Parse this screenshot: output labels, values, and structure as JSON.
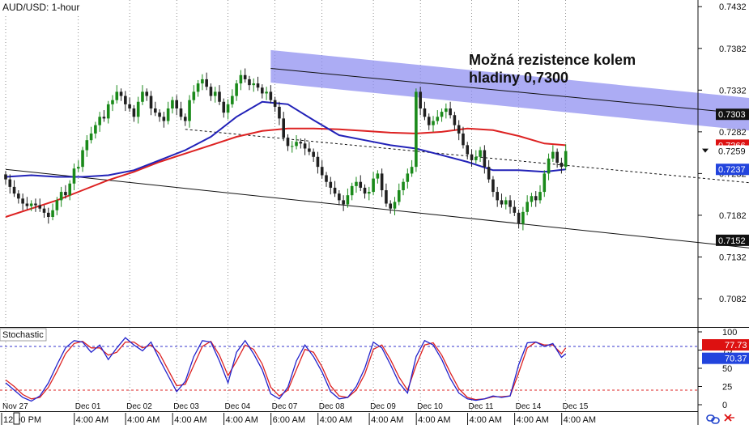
{
  "window": {
    "symbol_timeframe": "AUD/USD: 1-hour",
    "stoch_title": "Stochastic"
  },
  "annotation": {
    "line1": "Možná rezistence kolem",
    "line2": "hladiny 0,7300"
  },
  "colors": {
    "background": "#ffffff",
    "bull_candle": "#1a8a1a",
    "bear_candle": "#202020",
    "sma_fast": "#2222b8",
    "sma_slow": "#dd2222",
    "channel": "#111111",
    "resistance_zone": "#8c8cf0",
    "stoch_k": "#2222cc",
    "stoch_d": "#dd2222",
    "stoch_level_upper": "#3333cc",
    "stoch_level_lower": "#dd2222",
    "grid_vertical": "#444444",
    "label_dark": "#111111",
    "label_red": "#dd1111",
    "label_blue": "#2244dd"
  },
  "icons": {
    "link": "link-icon",
    "close": "close-icon",
    "scroll": "scroll-arrow-icon"
  },
  "chart_data": [
    {
      "type": "candlestick",
      "title": "AUD/USD: 1-hour",
      "x_tick_dates": [
        "Nov 27",
        "Dec 01",
        "Dec 02",
        "Dec 03",
        "Dec 04",
        "Dec 07",
        "Dec 08",
        "Dec 09",
        "Dec 10",
        "Dec 11",
        "Dec 14",
        "Dec 15"
      ],
      "x_tick_times": [
        "12:00 PM",
        "4:00 AM",
        "4:00 AM",
        "4:00 AM",
        "4:00 AM",
        "6:00 AM",
        "4:00 AM",
        "4:00 AM",
        "4:00 AM",
        "4:00 AM",
        "4:00 AM",
        "4:00 AM"
      ],
      "x_tick_index": [
        0,
        17,
        29,
        40,
        52,
        63,
        74,
        86,
        97,
        109,
        120,
        131
      ],
      "y_ticks": [
        0.7432,
        0.7382,
        0.7332,
        0.7282,
        0.7232,
        0.7182,
        0.7132,
        0.7082
      ],
      "ylim": [
        0.705,
        0.744
      ],
      "grid": "vertical-dotted",
      "price_labels": [
        {
          "text": "0.7303",
          "value": 0.7303,
          "style": "dark"
        },
        {
          "text": "0.7266",
          "value": 0.7266,
          "style": "red"
        },
        {
          "text": "0.7259",
          "value": 0.7259,
          "style": "white"
        },
        {
          "text": "0.7237",
          "value": 0.7237,
          "style": "blue"
        },
        {
          "text": "0.7152",
          "value": 0.7152,
          "style": "dark"
        }
      ],
      "close": [
        0.7225,
        0.7216,
        0.7208,
        0.7202,
        0.7196,
        0.7193,
        0.7196,
        0.7194,
        0.719,
        0.7185,
        0.718,
        0.7188,
        0.72,
        0.721,
        0.7206,
        0.722,
        0.7238,
        0.724,
        0.726,
        0.7272,
        0.728,
        0.729,
        0.73,
        0.7298,
        0.7315,
        0.732,
        0.733,
        0.7325,
        0.7315,
        0.731,
        0.73,
        0.7318,
        0.733,
        0.7325,
        0.731,
        0.7305,
        0.73,
        0.7295,
        0.731,
        0.732,
        0.731,
        0.73,
        0.7295,
        0.732,
        0.733,
        0.734,
        0.7345,
        0.7336,
        0.7325,
        0.733,
        0.7318,
        0.7305,
        0.7315,
        0.7325,
        0.734,
        0.735,
        0.7345,
        0.7338,
        0.734,
        0.7335,
        0.7328,
        0.733,
        0.732,
        0.7312,
        0.7298,
        0.7275,
        0.7265,
        0.7265,
        0.727,
        0.7268,
        0.7262,
        0.7258,
        0.7252,
        0.724,
        0.723,
        0.7222,
        0.7215,
        0.7208,
        0.72,
        0.7195,
        0.7206,
        0.7217,
        0.7222,
        0.7215,
        0.7208,
        0.721,
        0.7226,
        0.7232,
        0.7212,
        0.7196,
        0.719,
        0.7198,
        0.7212,
        0.7222,
        0.7232,
        0.724,
        0.733,
        0.731,
        0.73,
        0.729,
        0.7295,
        0.73,
        0.7306,
        0.731,
        0.7302,
        0.729,
        0.728,
        0.7266,
        0.7255,
        0.7248,
        0.7252,
        0.726,
        0.724,
        0.7225,
        0.721,
        0.72,
        0.7195,
        0.72,
        0.7192,
        0.7185,
        0.7172,
        0.7186,
        0.7198,
        0.7205,
        0.72,
        0.721,
        0.7232,
        0.725,
        0.7258,
        0.7245,
        0.724,
        0.7259
      ],
      "series": [
        {
          "name": "",
          "color_key": "sma_fast",
          "x_index": [
            0,
            6,
            12,
            18,
            24,
            30,
            36,
            42,
            48,
            54,
            60,
            66,
            72,
            78,
            84,
            90,
            96,
            102,
            108,
            114,
            120,
            126,
            131
          ],
          "values": [
            0.7228,
            0.723,
            0.7228,
            0.7228,
            0.723,
            0.7236,
            0.7248,
            0.726,
            0.7276,
            0.73,
            0.7318,
            0.7315,
            0.7296,
            0.7278,
            0.7272,
            0.7266,
            0.7262,
            0.7254,
            0.7246,
            0.7236,
            0.7236,
            0.7234,
            0.7237
          ]
        },
        {
          "name": "",
          "color_key": "sma_slow",
          "x_index": [
            0,
            6,
            12,
            18,
            24,
            30,
            36,
            42,
            48,
            54,
            60,
            66,
            72,
            78,
            84,
            90,
            96,
            102,
            108,
            114,
            120,
            126,
            131
          ],
          "values": [
            0.718,
            0.719,
            0.72,
            0.7212,
            0.7224,
            0.7234,
            0.7246,
            0.7256,
            0.7266,
            0.7276,
            0.7283,
            0.7286,
            0.7286,
            0.7285,
            0.7283,
            0.7281,
            0.728,
            0.7282,
            0.7286,
            0.7284,
            0.7277,
            0.7268,
            0.7266
          ]
        }
      ],
      "trendlines": [
        {
          "style": "solid",
          "from": [
            62,
            0.7358
          ],
          "to": [
            207,
            0.7287
          ]
        },
        {
          "style": "dashed",
          "from": [
            42,
            0.7285
          ],
          "to": [
            207,
            0.7205
          ]
        },
        {
          "style": "solid",
          "from": [
            0,
            0.7237
          ],
          "to": [
            207,
            0.7125
          ]
        }
      ],
      "zone": {
        "corners": [
          [
            62,
            0.738
          ],
          [
            175,
            0.7322
          ],
          [
            175,
            0.7283
          ],
          [
            62,
            0.7341
          ]
        ]
      }
    },
    {
      "type": "line",
      "title": "Stochastic",
      "y_ticks": [
        100,
        75,
        50,
        25,
        0
      ],
      "ylim": [
        0,
        100
      ],
      "levels": [
        80,
        20
      ],
      "value_labels": [
        {
          "text": "77.73",
          "value": 77.73,
          "style": "red"
        },
        {
          "text": "70.37",
          "value": 70.37,
          "style": "blue"
        }
      ],
      "series": [
        {
          "name": "",
          "color_key": "stoch_k",
          "x_index": [
            0,
            2,
            4,
            6,
            8,
            10,
            12,
            14,
            16,
            18,
            20,
            22,
            24,
            26,
            28,
            30,
            32,
            34,
            36,
            38,
            40,
            42,
            44,
            46,
            48,
            50,
            52,
            54,
            56,
            58,
            60,
            62,
            64,
            66,
            68,
            70,
            72,
            74,
            76,
            78,
            80,
            82,
            84,
            86,
            88,
            90,
            92,
            94,
            96,
            98,
            100,
            102,
            104,
            106,
            108,
            110,
            112,
            114,
            116,
            118,
            120,
            122,
            124,
            126,
            128,
            130,
            131
          ],
          "values": [
            30,
            20,
            10,
            5,
            12,
            30,
            55,
            78,
            88,
            86,
            72,
            82,
            62,
            78,
            92,
            82,
            74,
            86,
            62,
            40,
            18,
            32,
            66,
            88,
            86,
            60,
            30,
            72,
            88,
            70,
            48,
            15,
            8,
            24,
            60,
            82,
            66,
            45,
            18,
            8,
            10,
            25,
            50,
            86,
            78,
            55,
            30,
            16,
            66,
            88,
            82,
            62,
            36,
            16,
            8,
            6,
            8,
            12,
            10,
            12,
            55,
            85,
            86,
            80,
            84,
            65,
            70
          ]
        },
        {
          "name": "",
          "color_key": "stoch_d",
          "x_index": [
            0,
            2,
            4,
            6,
            8,
            10,
            12,
            14,
            16,
            18,
            20,
            22,
            24,
            26,
            28,
            30,
            32,
            34,
            36,
            38,
            40,
            42,
            44,
            46,
            48,
            50,
            52,
            54,
            56,
            58,
            60,
            62,
            64,
            66,
            68,
            70,
            72,
            74,
            76,
            78,
            80,
            82,
            84,
            86,
            88,
            90,
            92,
            94,
            96,
            98,
            100,
            102,
            104,
            106,
            108,
            110,
            112,
            114,
            116,
            118,
            120,
            122,
            124,
            126,
            128,
            130,
            131
          ],
          "values": [
            34,
            25,
            14,
            8,
            10,
            24,
            46,
            70,
            84,
            87,
            78,
            78,
            68,
            72,
            86,
            86,
            78,
            82,
            70,
            48,
            26,
            28,
            54,
            80,
            87,
            68,
            40,
            60,
            82,
            76,
            56,
            24,
            12,
            20,
            48,
            76,
            72,
            52,
            26,
            12,
            10,
            20,
            42,
            76,
            82,
            62,
            38,
            20,
            54,
            82,
            85,
            68,
            44,
            22,
            10,
            7,
            8,
            11,
            11,
            12,
            44,
            78,
            86,
            82,
            82,
            70,
            78
          ]
        }
      ]
    }
  ]
}
